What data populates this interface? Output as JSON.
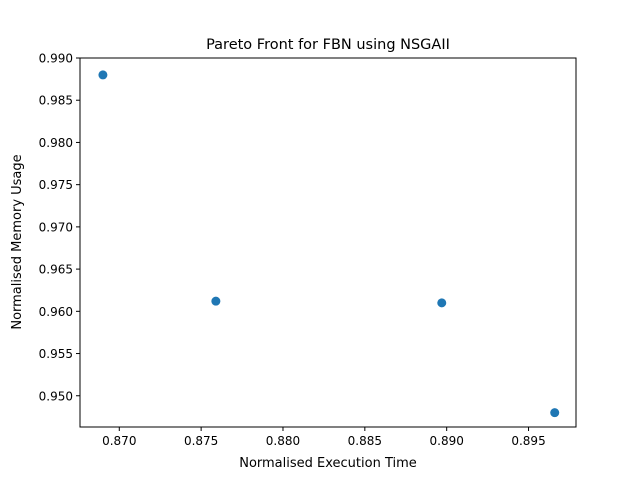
{
  "chart_data": {
    "type": "scatter",
    "title": "Pareto Front for FBN using NSGAII",
    "xlabel": "Normalised Execution Time",
    "ylabel": "Normalised Memory Usage",
    "xlim": [
      0.8676,
      0.8979
    ],
    "ylim": [
      0.9463,
      0.99
    ],
    "xticks": [
      0.87,
      0.875,
      0.88,
      0.885,
      0.89,
      0.895
    ],
    "xtick_labels": [
      "0.870",
      "0.875",
      "0.880",
      "0.885",
      "0.890",
      "0.895"
    ],
    "yticks": [
      0.95,
      0.955,
      0.96,
      0.965,
      0.97,
      0.975,
      0.98,
      0.985,
      0.99
    ],
    "ytick_labels": [
      "0.950",
      "0.955",
      "0.960",
      "0.965",
      "0.970",
      "0.975",
      "0.980",
      "0.985",
      "0.990"
    ],
    "grid": false,
    "series": [
      {
        "color": "#1f77b4",
        "points": [
          {
            "x": 0.869,
            "y": 0.988
          },
          {
            "x": 0.8759,
            "y": 0.9612
          },
          {
            "x": 0.8897,
            "y": 0.961
          },
          {
            "x": 0.8966,
            "y": 0.948
          }
        ]
      }
    ]
  }
}
